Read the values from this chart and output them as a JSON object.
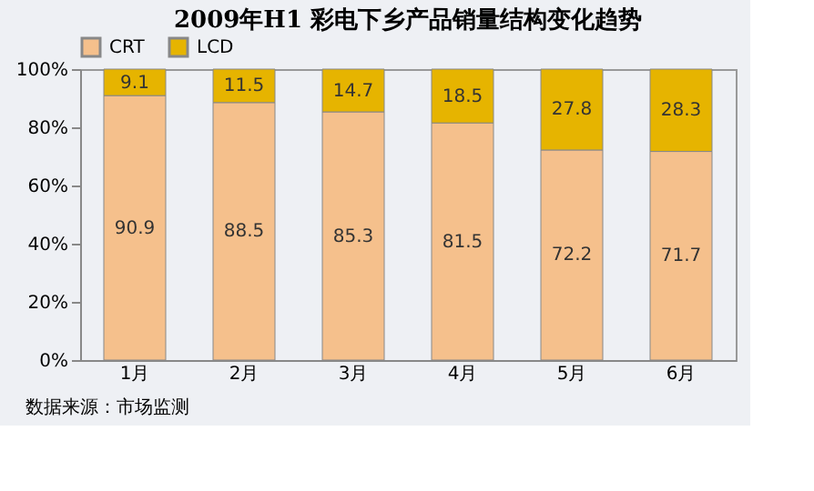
{
  "chart_data": {
    "type": "bar",
    "title": "2009年H1 彩电下乡产品销量结构变化趋势",
    "categories": [
      "1月",
      "2月",
      "3月",
      "4月",
      "5月",
      "6月"
    ],
    "series": [
      {
        "name": "CRT",
        "color": "#f5c08c",
        "values": [
          90.9,
          88.5,
          85.3,
          81.5,
          72.2,
          71.7
        ]
      },
      {
        "name": "LCD",
        "color": "#e6b400",
        "values": [
          9.1,
          11.5,
          14.7,
          18.5,
          27.8,
          28.3
        ]
      }
    ],
    "stacked": true,
    "data_labels": true,
    "legend": "top",
    "grid": false,
    "ylim": [
      0,
      100
    ],
    "yticks": [
      {
        "value": 0,
        "label": "0%"
      },
      {
        "value": 20,
        "label": "20%"
      },
      {
        "value": 40,
        "label": "40%"
      },
      {
        "value": 60,
        "label": "60%"
      },
      {
        "value": 80,
        "label": "80%"
      },
      {
        "value": 100,
        "label": "100%"
      }
    ],
    "annotations": [
      "数据来源：市场监测"
    ]
  }
}
